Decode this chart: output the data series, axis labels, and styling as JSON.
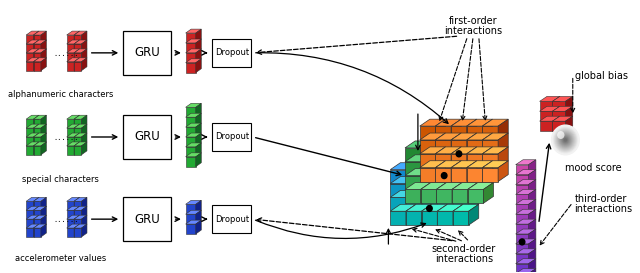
{
  "bg_color": "#ffffff",
  "rows": [
    {
      "color_face": "#cc2222",
      "color_dark": "#881111",
      "color_top": "#ff6666",
      "label": "alphanumeric characters"
    },
    {
      "color_face": "#22aa33",
      "color_dark": "#116622",
      "color_top": "#66dd66",
      "label": "special characters"
    },
    {
      "color_face": "#2244cc",
      "color_dark": "#112288",
      "color_top": "#6688ff",
      "label": "accelerometer values"
    }
  ]
}
